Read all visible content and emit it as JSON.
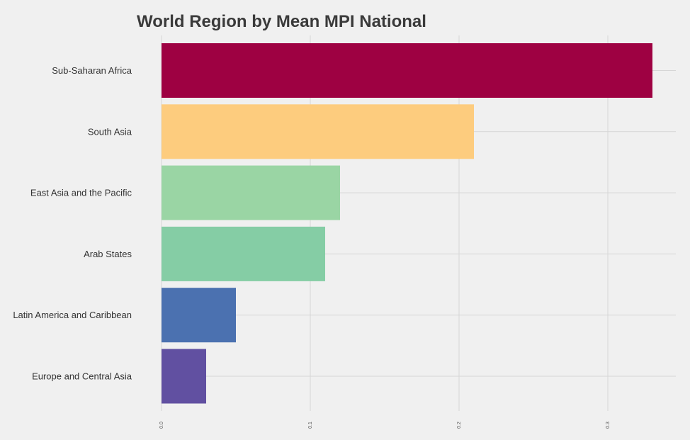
{
  "chart_data": {
    "type": "bar",
    "orientation": "horizontal",
    "title": "World Region by Mean MPI National",
    "xlabel": "",
    "ylabel": "",
    "categories": [
      "Sub-Saharan Africa",
      "South Asia",
      "East Asia and the Pacific",
      "Arab States",
      "Latin America and Caribbean",
      "Europe and Central Asia"
    ],
    "values": [
      0.33,
      0.21,
      0.12,
      0.11,
      0.05,
      0.03
    ],
    "colors": [
      "#9e0142",
      "#fdcc7e",
      "#9ad5a4",
      "#85cda5",
      "#4b71b0",
      "#6150a1"
    ],
    "xlim": [
      0,
      0.35
    ],
    "xticks": [
      0.0,
      0.1,
      0.2,
      0.3
    ],
    "xtick_labels": [
      "0.0",
      "0.1",
      "0.2",
      "0.3"
    ],
    "grid": true,
    "legend": "none"
  }
}
